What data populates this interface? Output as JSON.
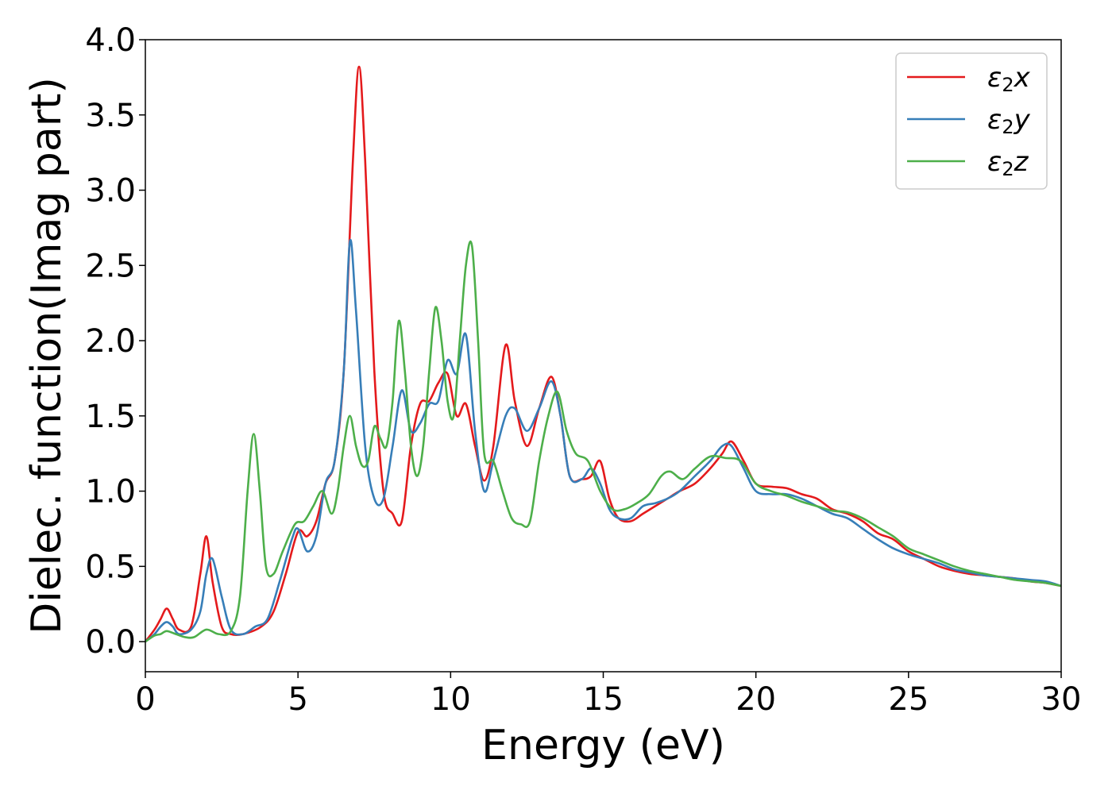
{
  "chart_data": {
    "type": "line",
    "title": "",
    "xlabel": "Energy (eV)",
    "ylabel": "Dielec. function(Imag part)",
    "xlim": [
      0,
      30
    ],
    "ylim": [
      -0.2,
      4.0
    ],
    "xticks": [
      0,
      5,
      10,
      15,
      20,
      25,
      30
    ],
    "xtick_labels": [
      "0",
      "5",
      "10",
      "15",
      "20",
      "25",
      "30"
    ],
    "yticks": [
      0.0,
      0.5,
      1.0,
      1.5,
      2.0,
      2.5,
      3.0,
      3.5,
      4.0
    ],
    "ytick_labels": [
      "0.0",
      "0.5",
      "1.0",
      "1.5",
      "2.0",
      "2.5",
      "3.0",
      "3.5",
      "4.0"
    ],
    "grid": false,
    "legend_position": "top-right",
    "series": [
      {
        "name": "ε₂x",
        "legend_main": "ε",
        "legend_sub": "2",
        "legend_suffix": "x",
        "color": "#e41a1c",
        "x": [
          0,
          0.3,
          0.5,
          0.7,
          0.9,
          1.1,
          1.5,
          1.8,
          2.0,
          2.2,
          2.5,
          2.8,
          3.2,
          3.8,
          4.2,
          4.6,
          5.0,
          5.3,
          5.6,
          5.9,
          6.2,
          6.5,
          6.8,
          7.0,
          7.2,
          7.5,
          7.8,
          8.1,
          8.4,
          8.7,
          9.0,
          9.3,
          9.6,
          9.9,
          10.2,
          10.5,
          10.8,
          11.1,
          11.4,
          11.8,
          12.1,
          12.5,
          12.9,
          13.3,
          13.6,
          13.9,
          14.3,
          14.6,
          14.9,
          15.2,
          15.5,
          15.9,
          16.3,
          16.7,
          17.1,
          17.5,
          18.0,
          18.5,
          18.9,
          19.2,
          19.6,
          20.0,
          20.5,
          21.0,
          21.5,
          22.0,
          22.5,
          23.0,
          23.5,
          24.0,
          24.5,
          25.0,
          25.5,
          26.0,
          26.5,
          27.0,
          27.5,
          28.0,
          28.5,
          29.0,
          29.5,
          30.0
        ],
        "y": [
          0.0,
          0.08,
          0.15,
          0.22,
          0.15,
          0.08,
          0.1,
          0.45,
          0.7,
          0.4,
          0.1,
          0.05,
          0.05,
          0.1,
          0.2,
          0.45,
          0.73,
          0.7,
          0.8,
          1.05,
          1.2,
          1.8,
          3.2,
          3.82,
          3.2,
          1.8,
          1.0,
          0.85,
          0.8,
          1.3,
          1.58,
          1.6,
          1.72,
          1.78,
          1.5,
          1.58,
          1.3,
          1.07,
          1.3,
          1.97,
          1.6,
          1.3,
          1.55,
          1.76,
          1.5,
          1.1,
          1.08,
          1.1,
          1.2,
          0.95,
          0.82,
          0.8,
          0.85,
          0.9,
          0.95,
          1.0,
          1.05,
          1.15,
          1.25,
          1.33,
          1.2,
          1.05,
          1.03,
          1.02,
          0.98,
          0.95,
          0.88,
          0.85,
          0.8,
          0.72,
          0.68,
          0.6,
          0.55,
          0.5,
          0.47,
          0.45,
          0.44,
          0.43,
          0.42,
          0.4,
          0.39,
          0.37
        ]
      },
      {
        "name": "ε₂y",
        "legend_main": "ε",
        "legend_sub": "2",
        "legend_suffix": "y",
        "color": "#377eb8",
        "x": [
          0,
          0.3,
          0.5,
          0.7,
          0.9,
          1.1,
          1.5,
          1.8,
          2.0,
          2.2,
          2.5,
          2.8,
          3.2,
          3.6,
          4.0,
          4.4,
          4.8,
          5.0,
          5.3,
          5.6,
          5.9,
          6.2,
          6.5,
          6.7,
          6.9,
          7.2,
          7.5,
          7.8,
          8.1,
          8.4,
          8.7,
          9.0,
          9.3,
          9.6,
          9.9,
          10.2,
          10.5,
          10.8,
          11.1,
          11.4,
          11.8,
          12.1,
          12.5,
          12.9,
          13.3,
          13.6,
          13.9,
          14.3,
          14.6,
          14.9,
          15.2,
          15.5,
          15.9,
          16.3,
          16.7,
          17.1,
          17.5,
          18.0,
          18.5,
          18.9,
          19.2,
          19.6,
          20.0,
          20.5,
          21.0,
          21.5,
          22.0,
          22.5,
          23.0,
          23.5,
          24.0,
          24.5,
          25.0,
          25.5,
          26.0,
          26.5,
          27.0,
          27.5,
          28.0,
          28.5,
          29.0,
          29.5,
          30.0
        ],
        "y": [
          0.0,
          0.05,
          0.1,
          0.13,
          0.1,
          0.05,
          0.08,
          0.2,
          0.45,
          0.55,
          0.3,
          0.08,
          0.05,
          0.1,
          0.15,
          0.4,
          0.68,
          0.75,
          0.6,
          0.7,
          1.05,
          1.2,
          1.8,
          2.66,
          2.2,
          1.3,
          0.95,
          0.95,
          1.3,
          1.67,
          1.4,
          1.45,
          1.58,
          1.6,
          1.87,
          1.78,
          2.04,
          1.4,
          1.0,
          1.2,
          1.5,
          1.55,
          1.4,
          1.55,
          1.73,
          1.5,
          1.1,
          1.08,
          1.15,
          1.05,
          0.88,
          0.82,
          0.82,
          0.9,
          0.92,
          0.95,
          1.0,
          1.1,
          1.2,
          1.3,
          1.3,
          1.15,
          1.0,
          0.98,
          0.98,
          0.95,
          0.9,
          0.85,
          0.82,
          0.75,
          0.68,
          0.62,
          0.58,
          0.55,
          0.52,
          0.48,
          0.46,
          0.44,
          0.43,
          0.42,
          0.41,
          0.4,
          0.37
        ]
      },
      {
        "name": "ε₂z",
        "legend_main": "ε",
        "legend_sub": "2",
        "legend_suffix": "z",
        "color": "#4daf4a",
        "x": [
          0,
          0.3,
          0.5,
          0.7,
          1.0,
          1.3,
          1.6,
          2.0,
          2.4,
          2.8,
          3.1,
          3.35,
          3.55,
          3.75,
          3.95,
          4.2,
          4.5,
          4.9,
          5.2,
          5.5,
          5.8,
          6.1,
          6.3,
          6.5,
          6.7,
          6.9,
          7.1,
          7.3,
          7.5,
          7.7,
          7.9,
          8.1,
          8.3,
          8.5,
          8.7,
          8.9,
          9.1,
          9.3,
          9.5,
          9.7,
          9.9,
          10.1,
          10.3,
          10.5,
          10.7,
          10.9,
          11.1,
          11.4,
          11.7,
          12.0,
          12.3,
          12.6,
          12.9,
          13.2,
          13.5,
          13.8,
          14.1,
          14.5,
          14.9,
          15.3,
          15.7,
          16.1,
          16.5,
          16.9,
          17.2,
          17.6,
          18.0,
          18.5,
          19.0,
          19.5,
          20.0,
          20.5,
          21.0,
          21.5,
          22.0,
          22.5,
          23.0,
          23.5,
          24.0,
          24.5,
          25.0,
          25.5,
          26.0,
          26.5,
          27.0,
          27.5,
          28.0,
          28.5,
          29.0,
          29.5,
          30.0
        ],
        "y": [
          0.0,
          0.04,
          0.05,
          0.07,
          0.05,
          0.03,
          0.03,
          0.08,
          0.05,
          0.07,
          0.3,
          1.0,
          1.38,
          1.0,
          0.5,
          0.45,
          0.6,
          0.78,
          0.8,
          0.9,
          1.0,
          0.85,
          1.0,
          1.3,
          1.5,
          1.3,
          1.17,
          1.2,
          1.43,
          1.35,
          1.3,
          1.6,
          2.13,
          1.8,
          1.3,
          1.1,
          1.3,
          1.8,
          2.22,
          2.0,
          1.6,
          1.5,
          2.0,
          2.5,
          2.63,
          2.0,
          1.25,
          1.2,
          1.0,
          0.82,
          0.78,
          0.8,
          1.2,
          1.5,
          1.66,
          1.4,
          1.25,
          1.2,
          1.0,
          0.88,
          0.88,
          0.92,
          0.98,
          1.1,
          1.13,
          1.08,
          1.15,
          1.23,
          1.22,
          1.2,
          1.05,
          1.0,
          0.97,
          0.93,
          0.9,
          0.87,
          0.86,
          0.82,
          0.76,
          0.7,
          0.62,
          0.58,
          0.54,
          0.5,
          0.47,
          0.45,
          0.43,
          0.41,
          0.4,
          0.39,
          0.37
        ]
      }
    ]
  }
}
